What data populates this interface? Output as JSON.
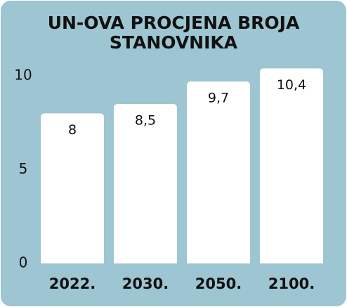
{
  "chart_data": {
    "type": "bar",
    "title": [
      "UN-OVA PROCJENA BROJA",
      "STANOVNIKA"
    ],
    "categories": [
      "2022.",
      "2030.",
      "2050.",
      "2100."
    ],
    "values": [
      8,
      8.5,
      9.7,
      10.4
    ],
    "value_labels": [
      "8",
      "8,5",
      "9,7",
      "10,4"
    ],
    "color": "#ffffff",
    "ylim": [
      0,
      11
    ],
    "yticks": [
      0,
      5,
      10
    ]
  }
}
